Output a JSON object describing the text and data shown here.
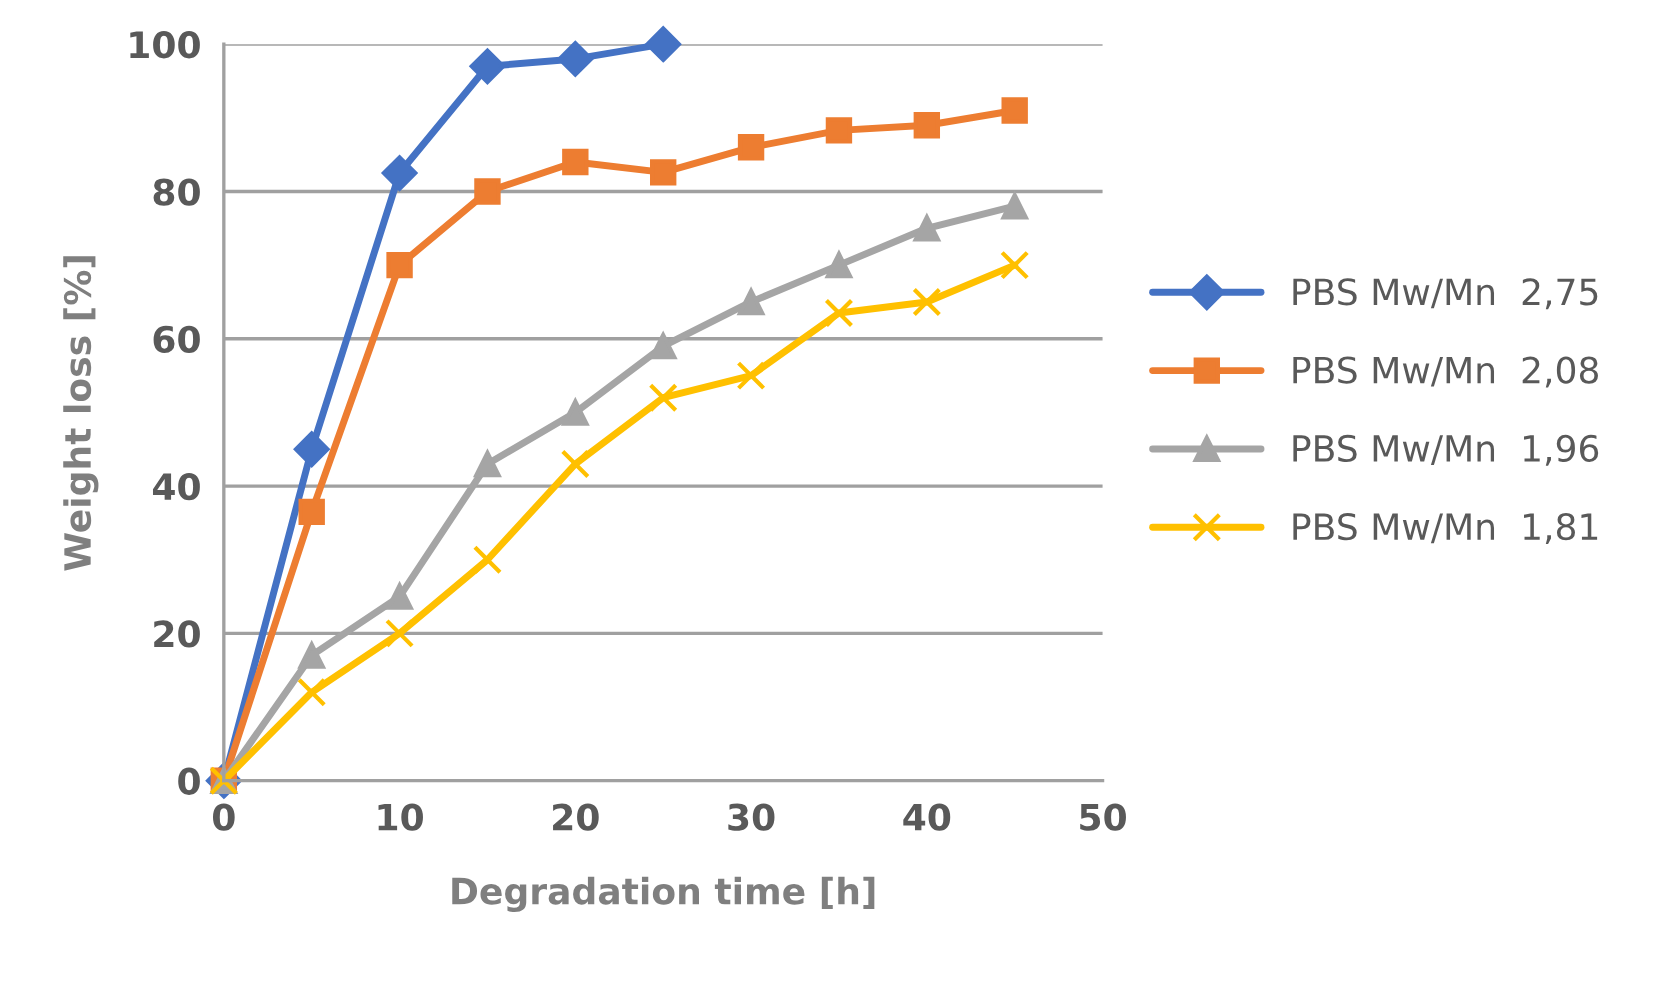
{
  "chart_data": {
    "type": "line",
    "xlabel": "Degradation time [h]",
    "ylabel": "Weight loss [%]",
    "x": [
      0,
      5,
      10,
      15,
      20,
      25,
      30,
      35,
      40,
      45
    ],
    "series": [
      {
        "name": "PBS Mw/Mn  2,75",
        "color": "#4472c4",
        "marker": "diamond",
        "x": [
          0,
          5,
          10,
          15,
          20,
          25
        ],
        "values": [
          0,
          45,
          82.5,
          97,
          98,
          100
        ]
      },
      {
        "name": "PBS Mw/Mn  2,08",
        "color": "#ed7d31",
        "marker": "square",
        "values": [
          0,
          36.5,
          70,
          80,
          84,
          82.6,
          86,
          88.3,
          89,
          91
        ]
      },
      {
        "name": "PBS Mw/Mn  1,96",
        "color": "#a5a5a5",
        "marker": "triangle",
        "values": [
          0,
          17,
          25,
          43,
          50,
          59,
          65,
          70,
          75,
          78
        ]
      },
      {
        "name": "PBS Mw/Mn  1,81",
        "color": "#ffc000",
        "marker": "cross",
        "values": [
          0,
          12,
          20,
          30,
          43,
          52,
          55,
          63.5,
          65,
          70
        ]
      }
    ],
    "xlim": [
      0,
      50
    ],
    "xticks": [
      0,
      10,
      20,
      30,
      40,
      50
    ],
    "ylim": [
      0,
      100
    ],
    "yticks": [
      0,
      20,
      40,
      60,
      80,
      100
    ],
    "grid": "y",
    "legend": "right",
    "line_style": "solid"
  }
}
